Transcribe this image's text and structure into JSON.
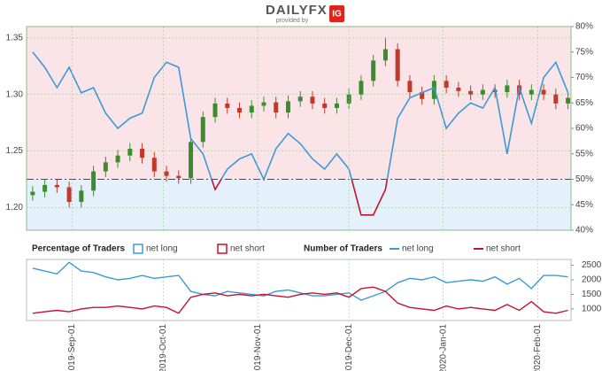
{
  "logo": {
    "text": "DAILYFX",
    "subtext": "provided by",
    "badge": "IG"
  },
  "chart_data": [
    {
      "type": "candlestick",
      "x": [
        "2019-08-19",
        "2019-08-23",
        "2019-08-27",
        "2019-08-31",
        "2019-09-04",
        "2019-09-08",
        "2019-09-12",
        "2019-09-16",
        "2019-09-20",
        "2019-09-24",
        "2019-09-28",
        "2019-10-02",
        "2019-10-06",
        "2019-10-10",
        "2019-10-14",
        "2019-10-18",
        "2019-10-22",
        "2019-10-26",
        "2019-10-30",
        "2019-11-03",
        "2019-11-07",
        "2019-11-11",
        "2019-11-15",
        "2019-11-19",
        "2019-11-23",
        "2019-11-27",
        "2019-12-01",
        "2019-12-05",
        "2019-12-09",
        "2019-12-13",
        "2019-12-17",
        "2019-12-21",
        "2019-12-25",
        "2019-12-29",
        "2020-01-02",
        "2020-01-06",
        "2020-01-10",
        "2020-01-14",
        "2020-01-18",
        "2020-01-22",
        "2020-01-26",
        "2020-01-30",
        "2020-02-03",
        "2020-02-07",
        "2020-02-11"
      ],
      "open": [
        1.211,
        1.214,
        1.22,
        1.218,
        1.205,
        1.215,
        1.232,
        1.24,
        1.246,
        1.252,
        1.244,
        1.232,
        1.228,
        1.226,
        1.258,
        1.28,
        1.292,
        1.288,
        1.284,
        1.29,
        1.293,
        1.284,
        1.294,
        1.298,
        1.292,
        1.288,
        1.292,
        1.3,
        1.312,
        1.33,
        1.34,
        1.312,
        1.302,
        1.296,
        1.312,
        1.306,
        1.303,
        1.3,
        1.304,
        1.302,
        1.308,
        1.3,
        1.304,
        1.3,
        1.292
      ],
      "high": [
        1.219,
        1.225,
        1.225,
        1.223,
        1.22,
        1.237,
        1.245,
        1.251,
        1.257,
        1.257,
        1.249,
        1.237,
        1.233,
        1.263,
        1.285,
        1.297,
        1.297,
        1.293,
        1.295,
        1.298,
        1.298,
        1.299,
        1.303,
        1.303,
        1.297,
        1.297,
        1.305,
        1.317,
        1.335,
        1.35,
        1.345,
        1.317,
        1.307,
        1.317,
        1.317,
        1.311,
        1.308,
        1.309,
        1.309,
        1.313,
        1.313,
        1.309,
        1.309,
        1.305,
        1.302
      ],
      "low": [
        1.206,
        1.209,
        1.213,
        1.2,
        1.2,
        1.21,
        1.227,
        1.235,
        1.241,
        1.239,
        1.227,
        1.223,
        1.221,
        1.221,
        1.253,
        1.275,
        1.283,
        1.279,
        1.279,
        1.285,
        1.279,
        1.279,
        1.289,
        1.287,
        1.283,
        1.283,
        1.287,
        1.295,
        1.307,
        1.325,
        1.307,
        1.297,
        1.291,
        1.291,
        1.301,
        1.298,
        1.295,
        1.295,
        1.297,
        1.297,
        1.295,
        1.295,
        1.295,
        1.287,
        1.287
      ],
      "close": [
        1.214,
        1.22,
        1.218,
        1.205,
        1.215,
        1.232,
        1.24,
        1.246,
        1.252,
        1.244,
        1.232,
        1.228,
        1.226,
        1.258,
        1.28,
        1.292,
        1.288,
        1.284,
        1.29,
        1.293,
        1.284,
        1.294,
        1.298,
        1.292,
        1.288,
        1.292,
        1.3,
        1.312,
        1.33,
        1.34,
        1.312,
        1.302,
        1.296,
        1.312,
        1.306,
        1.303,
        1.3,
        1.304,
        1.302,
        1.308,
        1.3,
        1.304,
        1.3,
        1.292,
        1.297
      ],
      "up_color": "#3d8b2f",
      "down_color": "#c0392b",
      "xlim": [
        "2019-08-17",
        "2020-02-12"
      ],
      "ylim": [
        1.18,
        1.36
      ],
      "yticks": [
        {
          "value": 1.2,
          "label": "1.20"
        },
        {
          "value": 1.25,
          "label": "1.25"
        },
        {
          "value": 1.3,
          "label": "1.30"
        },
        {
          "value": 1.35,
          "label": "1.35"
        }
      ],
      "y2lim": [
        40,
        80
      ],
      "y2ticks": [
        {
          "value": 40,
          "label": "40%"
        },
        {
          "value": 45,
          "label": "45%"
        },
        {
          "value": 50,
          "label": "50%"
        },
        {
          "value": 55,
          "label": "55%"
        },
        {
          "value": 60,
          "label": "60%"
        },
        {
          "value": 65,
          "label": "65%"
        },
        {
          "value": 70,
          "label": "70%"
        },
        {
          "value": 75,
          "label": "75%"
        },
        {
          "value": 80,
          "label": "80%"
        }
      ],
      "reference_line": 50,
      "series": [
        {
          "name": "net long",
          "color": "#3a9ad9",
          "below_color": "#c8102e",
          "axis": "y2",
          "values": [
            75,
            72,
            68,
            72,
            67,
            68,
            63,
            60,
            62,
            63,
            70,
            73,
            72,
            58,
            55,
            48,
            52,
            54,
            55,
            50,
            56,
            59,
            57,
            54,
            52,
            55,
            52,
            43,
            43,
            48,
            62,
            66,
            67,
            68,
            60,
            63,
            65,
            64,
            68,
            55,
            68,
            61,
            70,
            73,
            67
          ]
        }
      ],
      "legend": {
        "title": "Percentage of Traders",
        "entries": [
          {
            "name": "net long",
            "color": "#3a9ad9"
          },
          {
            "name": "net short",
            "color": "#c8102e"
          }
        ]
      },
      "grid": true
    },
    {
      "type": "line",
      "x": [
        "2019-08-19",
        "2019-08-23",
        "2019-08-27",
        "2019-08-31",
        "2019-09-04",
        "2019-09-08",
        "2019-09-12",
        "2019-09-16",
        "2019-09-20",
        "2019-09-24",
        "2019-09-28",
        "2019-10-02",
        "2019-10-06",
        "2019-10-10",
        "2019-10-14",
        "2019-10-18",
        "2019-10-22",
        "2019-10-26",
        "2019-10-30",
        "2019-11-03",
        "2019-11-07",
        "2019-11-11",
        "2019-11-15",
        "2019-11-19",
        "2019-11-23",
        "2019-11-27",
        "2019-12-01",
        "2019-12-05",
        "2019-12-09",
        "2019-12-13",
        "2019-12-17",
        "2019-12-21",
        "2019-12-25",
        "2019-12-29",
        "2020-01-02",
        "2020-01-06",
        "2020-01-10",
        "2020-01-14",
        "2020-01-18",
        "2020-01-22",
        "2020-01-26",
        "2020-01-30",
        "2020-02-03",
        "2020-02-07",
        "2020-02-11"
      ],
      "xlim": [
        "2019-08-17",
        "2020-02-12"
      ],
      "xticks": [
        {
          "value": "2019-09-01",
          "label": "2019-Sep-01"
        },
        {
          "value": "2019-10-01",
          "label": "2019-Oct-01"
        },
        {
          "value": "2019-11-01",
          "label": "2019-Nov-01"
        },
        {
          "value": "2019-12-01",
          "label": "2019-Dec-01"
        },
        {
          "value": "2020-01-01",
          "label": "2020-Jan-01"
        },
        {
          "value": "2020-02-01",
          "label": "2020-Feb-01"
        }
      ],
      "ylim": [
        600,
        2700
      ],
      "yticks": [
        1000,
        1500,
        2000,
        2500
      ],
      "legend_title": "Number of Traders",
      "series": [
        {
          "name": "net long",
          "color": "#3a9ad9",
          "values": [
            2400,
            2300,
            2200,
            2600,
            2300,
            2250,
            2100,
            2000,
            2050,
            2150,
            2050,
            2100,
            2150,
            1600,
            1500,
            1450,
            1600,
            1550,
            1500,
            1450,
            1600,
            1650,
            1550,
            1450,
            1450,
            1500,
            1550,
            1300,
            1450,
            1600,
            1900,
            2050,
            2000,
            2100,
            1900,
            1950,
            2000,
            1950,
            2100,
            1850,
            2050,
            1700,
            2150,
            2150,
            2100
          ]
        },
        {
          "name": "net short",
          "color": "#c8102e",
          "values": [
            850,
            900,
            950,
            900,
            1000,
            1050,
            1050,
            1100,
            1050,
            1000,
            1100,
            1050,
            850,
            1400,
            1500,
            1550,
            1450,
            1500,
            1450,
            1500,
            1450,
            1400,
            1500,
            1550,
            1500,
            1550,
            1400,
            1700,
            1750,
            1600,
            1200,
            1050,
            1000,
            950,
            1100,
            1000,
            1050,
            1000,
            950,
            1150,
            950,
            1250,
            900,
            850,
            950
          ]
        }
      ],
      "grid": true
    }
  ]
}
